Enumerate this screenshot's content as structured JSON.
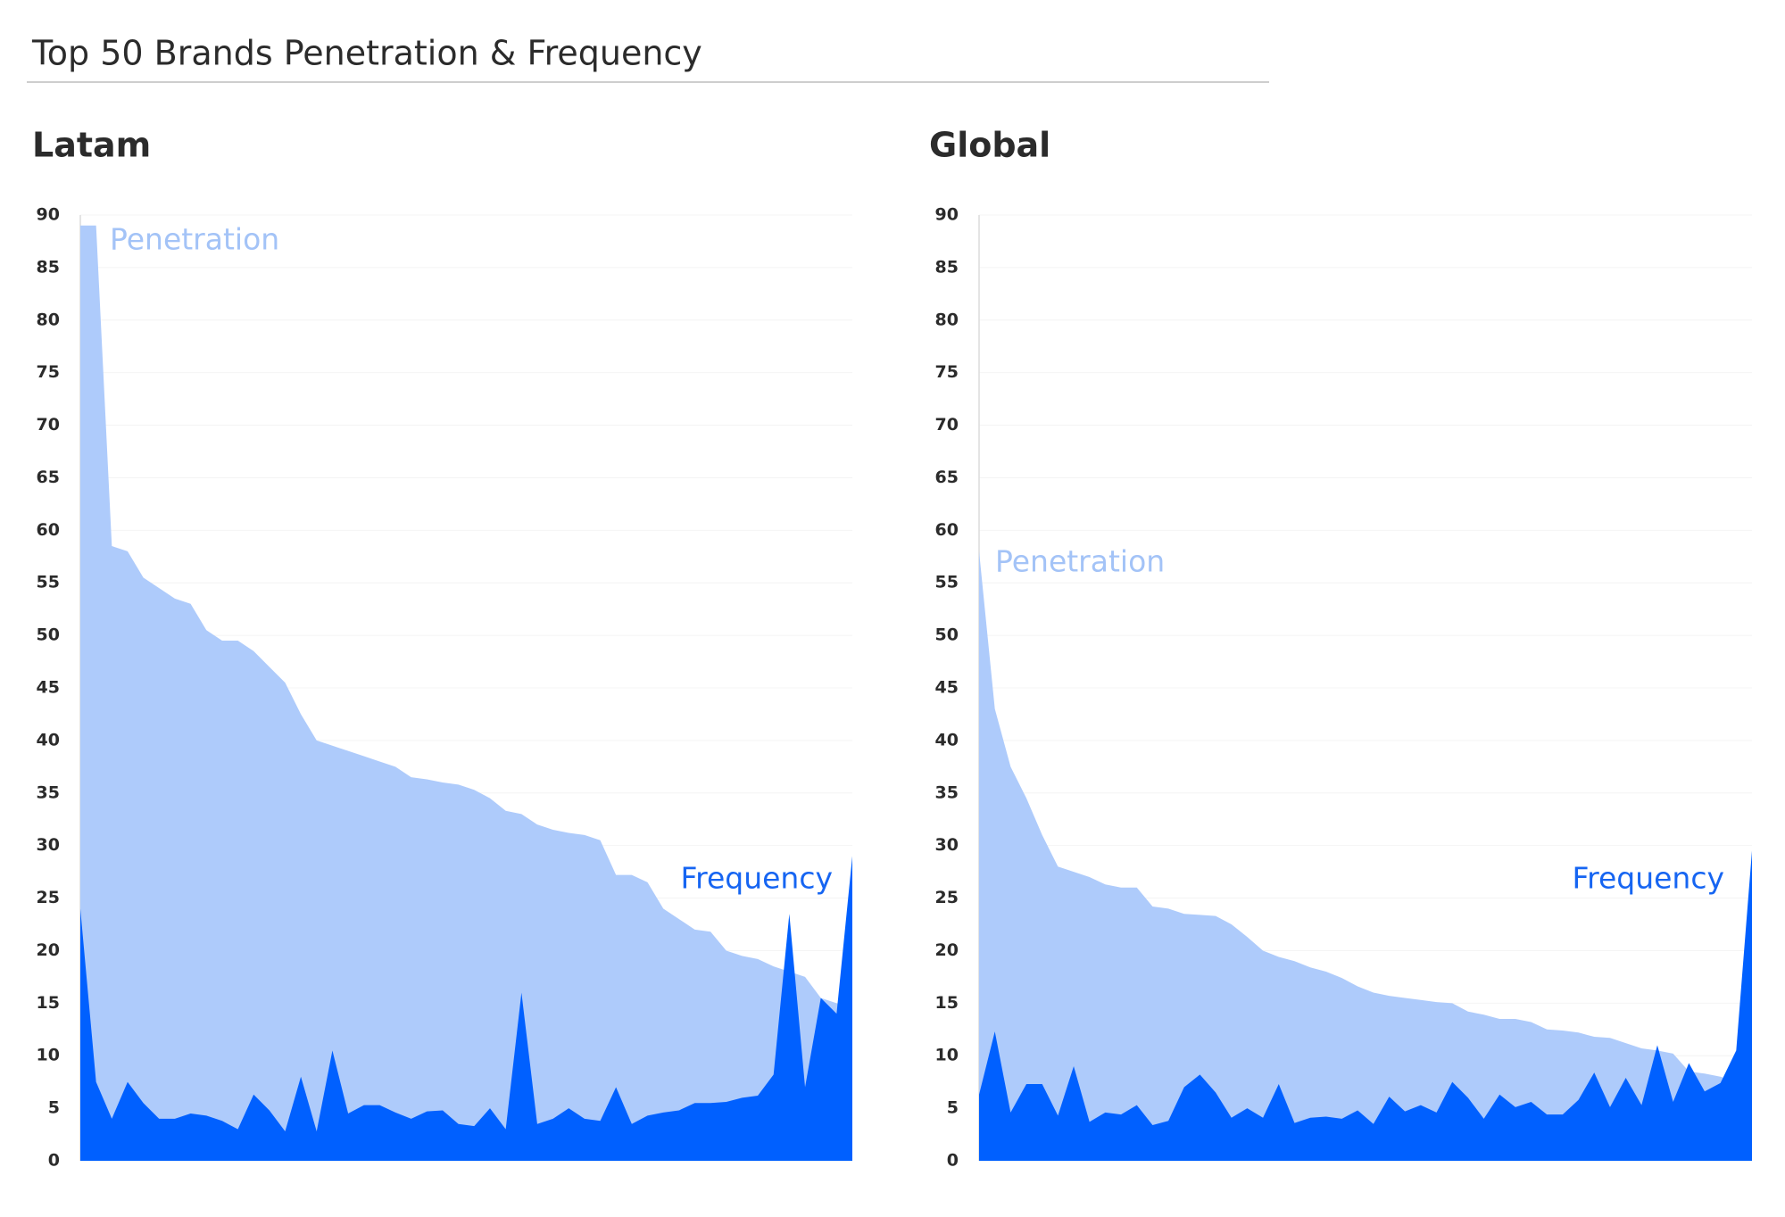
{
  "title": "Top 50 Brands Penetration & Frequency",
  "chart_data": [
    {
      "type": "area",
      "title": "Latam",
      "ylim": [
        0,
        90
      ],
      "yticks": [
        0,
        5,
        10,
        15,
        20,
        25,
        30,
        35,
        40,
        45,
        50,
        55,
        60,
        65,
        70,
        75,
        80,
        85,
        90
      ],
      "grid": true,
      "series": [
        {
          "name": "Penetration",
          "color": "#aecbfb",
          "values": [
            89,
            89,
            58.5,
            58,
            55.5,
            54.5,
            53.5,
            53,
            50.5,
            49.5,
            49.5,
            48.5,
            47,
            45.5,
            42.5,
            40,
            39.5,
            39,
            38.5,
            38,
            37.5,
            36.5,
            36.3,
            36,
            35.8,
            35.3,
            34.5,
            33.3,
            33,
            32,
            31.5,
            31.2,
            31,
            30.5,
            27.2,
            27.2,
            26.5,
            24,
            23,
            22,
            21.8,
            20,
            19.5,
            19.2,
            18.5,
            18,
            17.5,
            15.5,
            15,
            14.5
          ]
        },
        {
          "name": "Frequency",
          "color": "#0060ff",
          "values": [
            24,
            7.5,
            4,
            7.5,
            5.5,
            4,
            4,
            4.5,
            4.3,
            3.8,
            3,
            6.3,
            4.8,
            2.8,
            8,
            2.8,
            10.5,
            4.5,
            5.3,
            5.3,
            4.6,
            4,
            4.7,
            4.8,
            3.5,
            3.3,
            5,
            3,
            16,
            3.5,
            4,
            5,
            4,
            3.8,
            7,
            3.5,
            4.3,
            4.6,
            4.8,
            5.5,
            5.5,
            5.6,
            6,
            6.2,
            8.2,
            23.5,
            7,
            15.5,
            14,
            29
          ]
        }
      ]
    },
    {
      "type": "area",
      "title": "Global",
      "ylim": [
        0,
        90
      ],
      "yticks": [
        0,
        5,
        10,
        15,
        20,
        25,
        30,
        35,
        40,
        45,
        50,
        55,
        60,
        65,
        70,
        75,
        80,
        85,
        90
      ],
      "grid": true,
      "series": [
        {
          "name": "Penetration",
          "color": "#aecbfb",
          "values": [
            58,
            43,
            37.5,
            34.5,
            31,
            28,
            27.5,
            27,
            26.3,
            26,
            26,
            24.2,
            24,
            23.5,
            23.4,
            23.3,
            22.5,
            21.3,
            20,
            19.4,
            19,
            18.4,
            18,
            17.4,
            16.6,
            16,
            15.7,
            15.5,
            15.3,
            15.1,
            15,
            14.2,
            13.9,
            13.5,
            13.5,
            13.2,
            12.5,
            12.4,
            12.2,
            11.8,
            11.7,
            11.2,
            10.7,
            10.5,
            10.2,
            8.5,
            8.3,
            8,
            7.5,
            7
          ]
        },
        {
          "name": "Frequency",
          "color": "#0060ff",
          "values": [
            6.3,
            12.3,
            4.6,
            7.3,
            7.3,
            4.3,
            9,
            3.7,
            4.6,
            4.4,
            5.3,
            3.4,
            3.8,
            7,
            8.2,
            6.5,
            4.1,
            5,
            4.1,
            7.3,
            3.6,
            4.1,
            4.2,
            4,
            4.8,
            3.5,
            6.1,
            4.7,
            5.3,
            4.6,
            7.5,
            6,
            4,
            6.3,
            5.1,
            5.6,
            4.4,
            4.4,
            5.8,
            8.4,
            5.1,
            7.9,
            5.3,
            11,
            5.6,
            9.3,
            6.6,
            7.4,
            10.5,
            29.5
          ]
        }
      ]
    }
  ]
}
